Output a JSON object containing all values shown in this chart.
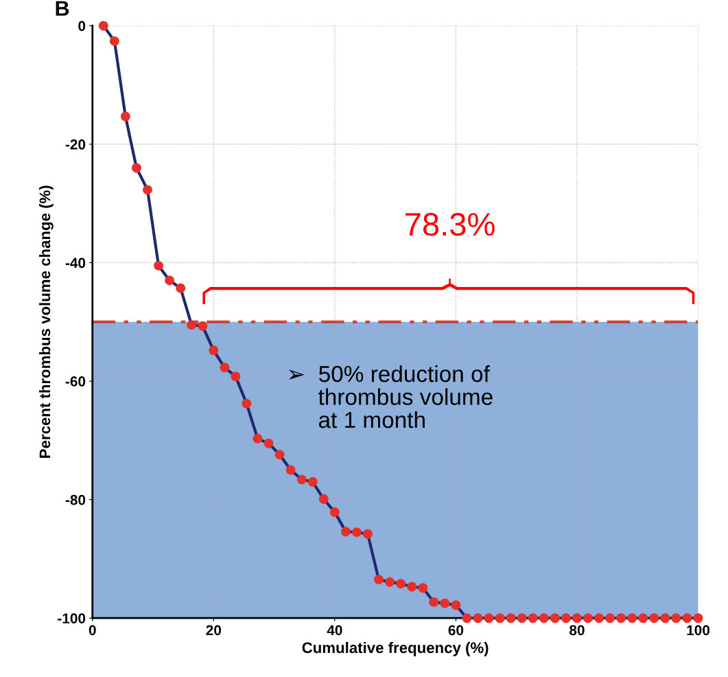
{
  "chart_data": {
    "type": "line",
    "xlabel": "Cumulative frequency (%)",
    "ylabel": "Percent thrombus volume change (%)",
    "x": [
      1.82,
      3.64,
      5.45,
      7.27,
      9.09,
      10.91,
      12.73,
      14.55,
      16.36,
      18.18,
      20.0,
      21.82,
      23.64,
      25.45,
      27.27,
      29.09,
      30.91,
      32.73,
      34.55,
      36.36,
      38.18,
      40.0,
      41.82,
      43.64,
      45.45,
      47.27,
      49.09,
      50.91,
      52.73,
      54.55,
      56.36,
      58.18,
      60.0,
      61.82,
      63.64,
      65.45,
      67.27,
      69.09,
      70.91,
      72.73,
      74.55,
      76.36,
      78.18,
      80.0,
      81.82,
      83.64,
      85.45,
      87.27,
      89.09,
      90.91,
      92.73,
      94.55,
      96.36,
      98.18,
      100.0
    ],
    "series": [
      {
        "color": "#1f2a6e",
        "colors": [
          "#e8302a",
          "#e8302a",
          "#e8302a",
          "#e8302a",
          "#e8302a",
          "#e8302a",
          "#e8302a",
          "#e8302a",
          "#e8302a",
          "#e8302a",
          "#e8302a",
          "#e8302a",
          "#e8302a",
          "#e8302a",
          "#e8302a",
          "#e8302a",
          "#e8302a",
          "#e8302a",
          "#e8302a",
          "#e8302a",
          "#e8302a",
          "#e8302a",
          "#e8302a",
          "#e8302a",
          "#e8302a",
          "#e8302a",
          "#e8302a",
          "#e8302a",
          "#e8302a",
          "#e8302a",
          "#e8302a",
          "#e8302a",
          "#e8302a",
          "#e8302a",
          "#e8302a",
          "#e8302a",
          "#e8302a",
          "#e8302a",
          "#e8302a",
          "#e8302a",
          "#e8302a",
          "#e8302a",
          "#e8302a",
          "#e8302a",
          "#e8302a",
          "#e8302a",
          "#e8302a",
          "#e8302a",
          "#e8302a",
          "#e8302a",
          "#e8302a",
          "#e8302a",
          "#e8302a",
          "#e8302a",
          "#e8302a"
        ],
        "values": [
          0,
          -2.6,
          -15.3,
          -24,
          -27.7,
          -40.5,
          -43,
          -44.3,
          -50.5,
          -50.7,
          -54.8,
          -57.7,
          -59.2,
          -63.8,
          -69.7,
          -70.5,
          -72.4,
          -75,
          -76.6,
          -77,
          -79.9,
          -82.1,
          -85.4,
          -85.5,
          -85.8,
          -93.5,
          -93.9,
          -94.2,
          -94.7,
          -94.9,
          -97.3,
          -97.5,
          -97.8,
          -100,
          -100,
          -100,
          -100,
          -100,
          -100,
          -100,
          -100,
          -100,
          -100,
          -100,
          -100,
          -100,
          -100,
          -100,
          -100,
          -100,
          -100,
          -100,
          -100,
          -100,
          -100
        ]
      }
    ],
    "xlim": [
      0,
      100
    ],
    "ylim": [
      -100,
      0
    ],
    "xticks": [
      0,
      20,
      40,
      60,
      80,
      100
    ],
    "yticks": [
      -100,
      -80,
      -60,
      -40,
      -20,
      0
    ],
    "grid": true,
    "marker": "circle",
    "line_style": "solid",
    "ref_lines": [
      {
        "axis": "y",
        "value": -50,
        "label": null,
        "color": "#c8463c",
        "line_style": "dashdotdot"
      }
    ],
    "bands": [
      {
        "axis": "y",
        "from": -100,
        "to": -50,
        "label": null,
        "color": "#8fb0da"
      }
    ],
    "annotations": [
      "78.3%",
      "➢  50% reduction of\n     thrombus volume\n     at 1 month",
      "B"
    ]
  }
}
